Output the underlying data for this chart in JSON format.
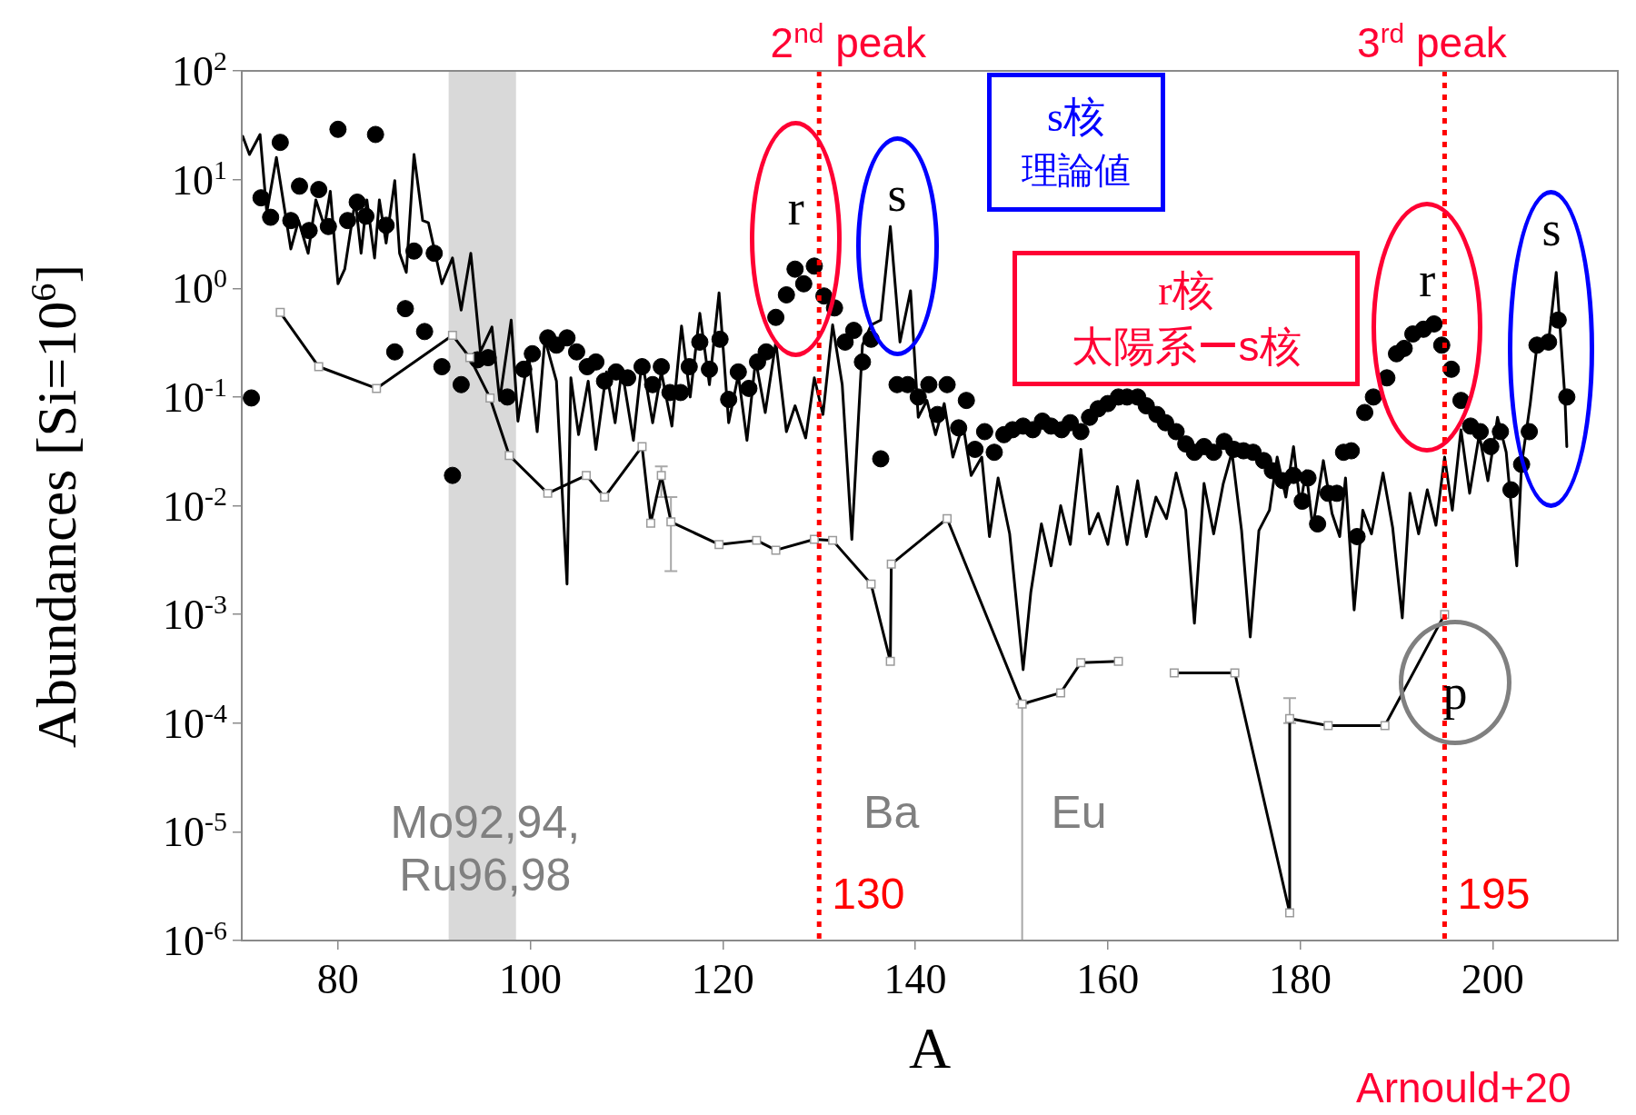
{
  "chart_data": {
    "type": "line",
    "xlabel": "A",
    "ylabel": "Abundances [Si=10$^{6}$]",
    "xlim": [
      70,
      213
    ],
    "ylim": [
      1e-06,
      100
    ],
    "log": "y",
    "xticks": [
      80,
      100,
      120,
      140,
      160,
      180,
      200
    ],
    "yticks": [
      {
        "value": 100,
        "label": "10$^{2}$"
      },
      {
        "value": 10,
        "label": "10$^{1}$"
      },
      {
        "value": 1,
        "label": "10$^{0}$"
      },
      {
        "value": 0.1,
        "label": "10$^{-1}$"
      },
      {
        "value": 0.01,
        "label": "10$^{-2}$"
      },
      {
        "value": 0.001,
        "label": "10$^{-3}$"
      },
      {
        "value": 0.0001,
        "label": "10$^{-4}$"
      },
      {
        "value": 1e-05,
        "label": "10$^{-5}$"
      },
      {
        "value": 1e-06,
        "label": "10$^{-6}$"
      }
    ],
    "bands": [
      {
        "axis": "x",
        "from": 91.5,
        "to": 98.5,
        "color": "#d9d9d9"
      }
    ],
    "ref_lines": [
      {
        "axis": "x",
        "value": 130,
        "label": "130",
        "color": "#ff0000",
        "line_style": "dotted"
      },
      {
        "axis": "x",
        "value": 195,
        "label": "195",
        "color": "#ff0000",
        "line_style": "dotted"
      }
    ],
    "series": [
      {
        "color": "#000000",
        "marker": "none",
        "x": [
          70.1,
          70.8,
          71.9,
          72.6,
          73.6,
          75.1,
          75.9,
          76.9,
          77.7,
          78.6,
          79.2,
          80.0,
          80.7,
          81.8,
          82.4,
          83.0,
          83.8,
          84.3,
          85.0,
          85.9,
          86.4,
          87.1,
          87.9,
          88.8,
          89.4,
          90.8,
          91.9,
          92.8,
          93.8,
          94.8,
          96.0,
          96.8,
          98.0,
          98.7,
          99.8,
          100.7,
          101.5,
          102.7,
          103.8,
          104.2,
          105.0,
          106.0,
          106.8,
          107.9,
          108.8,
          109.5,
          110.7,
          111.6,
          112.7,
          113.6,
          114.7,
          115.7,
          116.6,
          117.6,
          118.6,
          119.6,
          120.6,
          121.6,
          122.5,
          123.4,
          124.4,
          125.5,
          126.6,
          127.5,
          128.6,
          129.5,
          130.4,
          131.4,
          132.4,
          133.4,
          134.5,
          135.4,
          136.4,
          137.4,
          138.4,
          139.5,
          140.3,
          141.2,
          142.1,
          143.0,
          143.9,
          144.95,
          145.8,
          146.9,
          147.7,
          148.6,
          149.8,
          151.2,
          152.0,
          153.1,
          154.1,
          155.1,
          156.1,
          157.2,
          158.1,
          159.0,
          160.0,
          161.0,
          162.0,
          163.1,
          164.0,
          165.0,
          166.1,
          167.1,
          168.1,
          169.0,
          170.0,
          171.0,
          172.0,
          172.9,
          173.9,
          174.8,
          175.7,
          176.8,
          177.6,
          178.5,
          179.3,
          180.0,
          180.6,
          181.3,
          182.4,
          183.3,
          184.1,
          184.7,
          185.6,
          186.5,
          187.4,
          188.6,
          189.6,
          190.6,
          191.4,
          192.3,
          193.2,
          194.1,
          195.0,
          195.8,
          196.7,
          197.6,
          198.6,
          199.5,
          200.5,
          201.4,
          202.5,
          203.0,
          203.9,
          204.6,
          205.8,
          206.6,
          207.5,
          207.7
        ],
        "values": [
          25,
          17,
          26,
          5.0,
          16,
          2.3,
          4.2,
          2.1,
          6.5,
          3.7,
          7.8,
          1.1,
          1.5,
          6.5,
          2.1,
          6.5,
          1.9,
          6.5,
          2.6,
          9.8,
          2.1,
          1.4,
          17,
          4.2,
          4.0,
          1.1,
          1.9,
          0.63,
          2.1,
          0.26,
          0.44,
          0.093,
          0.51,
          0.06,
          0.25,
          0.048,
          0.34,
          0.14,
          0.0019,
          0.15,
          0.045,
          0.14,
          0.033,
          0.17,
          0.058,
          0.18,
          0.04,
          0.22,
          0.058,
          0.17,
          0.054,
          0.45,
          0.1,
          0.59,
          0.13,
          0.91,
          0.058,
          0.16,
          0.04,
          0.22,
          0.072,
          0.32,
          0.048,
          0.083,
          0.042,
          0.15,
          0.069,
          0.46,
          0.13,
          0.0049,
          0.3,
          0.46,
          0.51,
          3.7,
          0.32,
          0.95,
          0.065,
          0.093,
          0.045,
          0.087,
          0.028,
          0.056,
          0.019,
          0.028,
          0.0052,
          0.018,
          0.0055,
          0.00031,
          0.0016,
          0.0068,
          0.0028,
          0.01,
          0.0044,
          0.033,
          0.0055,
          0.0085,
          0.0044,
          0.015,
          0.0044,
          0.017,
          0.0052,
          0.012,
          0.0076,
          0.02,
          0.0091,
          0.00083,
          0.016,
          0.0055,
          0.016,
          0.031,
          0.0059,
          0.00062,
          0.0059,
          0.0091,
          0.028,
          0.012,
          0.035,
          0.01,
          0.021,
          0.0063,
          0.026,
          0.0085,
          0.0052,
          0.018,
          0.0011,
          0.0091,
          0.0055,
          0.02,
          0.0063,
          0.00093,
          0.013,
          0.0055,
          0.014,
          0.0066,
          0.028,
          0.0091,
          0.05,
          0.013,
          0.045,
          0.017,
          0.065,
          0.031,
          0.0028,
          0.024,
          0.087,
          0.3,
          0.32,
          1.4,
          0.1,
          0.035
        ]
      },
      {
        "type": "scatter",
        "color": "#000000",
        "marker": "circle",
        "x": [
          71.0,
          72.0,
          73.0,
          74.0,
          75.1,
          76.0,
          77.0,
          78.0,
          79.0,
          80.0,
          81.0,
          82.0,
          82.9,
          83.9,
          85.0,
          85.9,
          87.0,
          87.9,
          89.0,
          90.0,
          90.8,
          91.9,
          92.8,
          94.5,
          95.6,
          97.6,
          99.3,
          100.2,
          101.8,
          102.7,
          103.8,
          104.8,
          105.9,
          106.8,
          107.7,
          108.9,
          110.1,
          111.6,
          112.7,
          113.6,
          114.5,
          115.6,
          116.5,
          117.6,
          118.6,
          119.7,
          120.6,
          121.6,
          122.7,
          123.6,
          124.5,
          125.5,
          126.6,
          127.5,
          128.4,
          129.5,
          130.5,
          131.6,
          132.7,
          133.6,
          134.5,
          135.4,
          136.4,
          138.1,
          139.2,
          140.3,
          141.4,
          142.3,
          143.3,
          144.5,
          145.3,
          146.2,
          147.2,
          148.2,
          149.2,
          150.1,
          151.2,
          152.2,
          153.2,
          154.1,
          155.2,
          156.1,
          157.2,
          158.1,
          159.0,
          160.0,
          161.1,
          162.0,
          163.1,
          164.0,
          165.1,
          166.0,
          167.1,
          168.1,
          169.0,
          170.0,
          171.0,
          172.1,
          173.1,
          174.1,
          175.1,
          176.2,
          177.1,
          178.2,
          179.3,
          180.2,
          180.8,
          181.8,
          182.9,
          183.8,
          184.5,
          185.3,
          185.9,
          186.7,
          187.6,
          189.0,
          190.0,
          190.8,
          191.7,
          192.8,
          193.9,
          194.7,
          195.7,
          196.7,
          197.7,
          198.7,
          199.8,
          200.8,
          201.9,
          203.0,
          203.8,
          204.6,
          205.8,
          206.8,
          207.7
        ],
        "values": [
          0.098,
          6.8,
          4.5,
          22,
          4.2,
          8.7,
          3.4,
          8.1,
          3.7,
          29,
          4.2,
          6.2,
          4.6,
          26,
          3.8,
          0.26,
          0.65,
          2.2,
          0.4,
          2.1,
          0.19,
          0.019,
          0.13,
          0.22,
          0.23,
          0.1,
          0.18,
          0.25,
          0.35,
          0.3,
          0.35,
          0.26,
          0.19,
          0.21,
          0.14,
          0.17,
          0.15,
          0.19,
          0.13,
          0.19,
          0.11,
          0.11,
          0.19,
          0.32,
          0.18,
          0.34,
          0.095,
          0.17,
          0.12,
          0.21,
          0.26,
          0.54,
          0.87,
          1.5,
          1.1,
          1.6,
          0.85,
          0.66,
          0.32,
          0.41,
          0.21,
          0.34,
          0.027,
          0.13,
          0.13,
          0.1,
          0.13,
          0.069,
          0.13,
          0.052,
          0.093,
          0.033,
          0.048,
          0.031,
          0.045,
          0.05,
          0.054,
          0.05,
          0.06,
          0.054,
          0.05,
          0.058,
          0.048,
          0.065,
          0.078,
          0.087,
          0.1,
          0.1,
          0.1,
          0.083,
          0.069,
          0.058,
          0.048,
          0.037,
          0.031,
          0.035,
          0.031,
          0.039,
          0.033,
          0.032,
          0.031,
          0.026,
          0.021,
          0.017,
          0.019,
          0.011,
          0.018,
          0.0068,
          0.013,
          0.013,
          0.031,
          0.032,
          0.0052,
          0.072,
          0.1,
          0.15,
          0.25,
          0.28,
          0.38,
          0.42,
          0.47,
          0.3,
          0.18,
          0.093,
          0.054,
          0.048,
          0.035,
          0.048,
          0.014,
          0.024,
          0.048,
          0.3,
          0.32,
          0.51,
          0.1
        ]
      },
      {
        "color": "#000000",
        "marker": "square",
        "x": [
          74.0,
          78.0,
          84.0,
          91.9,
          93.7,
          95.8,
          97.8,
          101.8,
          105.8,
          107.7,
          111.6,
          112.5,
          113.6,
          114.6,
          119.6,
          123.5,
          125.5,
          129.5,
          131.4,
          135.4,
          137.4,
          137.5,
          143.3,
          151.1,
          155.1,
          157.2,
          161.1,
          163.1,
          166.9,
          173.2,
          178.9,
          178.9,
          182.9,
          188.8,
          195.0
        ],
        "values": [
          0.6,
          0.19,
          0.12,
          0.37,
          0.23,
          0.098,
          0.029,
          0.013,
          0.019,
          0.012,
          0.035,
          0.0069,
          0.019,
          0.0071,
          0.0044,
          0.0048,
          0.0039,
          0.0049,
          0.0048,
          0.0019,
          0.00037,
          0.0029,
          0.0076,
          0.00015,
          0.00019,
          0.00036,
          0.00037,
          null,
          0.00029,
          0.00029,
          1.8e-06,
          0.00011,
          9.5e-05,
          9.5e-05,
          0.001
        ],
        "errors": [
          null,
          null,
          null,
          null,
          null,
          null,
          null,
          null,
          null,
          null,
          null,
          null,
          [
            0.012,
            0.023
          ],
          [
            0.0025,
            0.012
          ],
          null,
          null,
          null,
          null,
          null,
          null,
          null,
          null,
          null,
          [
            1e-06,
            0.00015
          ],
          null,
          null,
          null,
          null,
          null,
          null,
          null,
          [
            0.0001,
            0.00017
          ],
          null,
          null,
          null
        ]
      }
    ],
    "annotations": [
      "2$^{nd}$ peak",
      "3$^{rd}$ peak",
      "s核",
      "理論値",
      "r核",
      "太陽系ーs核",
      "r",
      "s",
      "r",
      "s",
      "p",
      "Mo92,94,\nRu96,98",
      "Ba",
      "Eu",
      "Arnould+20"
    ]
  }
}
